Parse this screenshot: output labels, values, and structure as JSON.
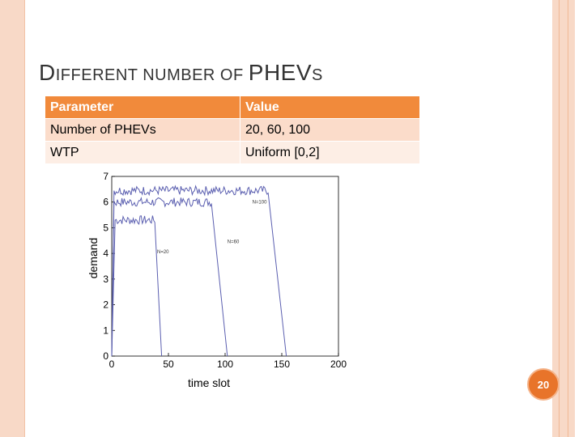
{
  "slide": {
    "title_first": "D",
    "title_rest": "IFFERENT NUMBER OF ",
    "title_big": "PHEV",
    "title_end": "S",
    "slide_number": "20"
  },
  "table": {
    "header": [
      "Parameter",
      "Value"
    ],
    "rows": [
      [
        "Number of PHEVs",
        "20, 60, 100"
      ],
      [
        "WTP",
        "Uniform [0,2]"
      ]
    ]
  },
  "chart_data": {
    "type": "line",
    "xlabel": "time slot",
    "ylabel": "demand",
    "xlim": [
      0,
      200
    ],
    "ylim": [
      0,
      7
    ],
    "x_ticks": [
      0,
      50,
      100,
      150,
      200
    ],
    "y_ticks": [
      0,
      1,
      2,
      3,
      4,
      5,
      6,
      7
    ],
    "series": [
      {
        "name": "N=20",
        "color": "#5b5fb0",
        "plateau": 5.3,
        "rise_end": 3,
        "drop_start": 38,
        "drop_end": 44
      },
      {
        "name": "N=60",
        "color": "#5b5fb0",
        "plateau": 6.0,
        "rise_end": 2,
        "drop_start": 88,
        "drop_end": 102
      },
      {
        "name": "N=100",
        "color": "#5b5fb0",
        "plateau": 6.45,
        "rise_end": 2,
        "drop_start": 138,
        "drop_end": 154
      }
    ],
    "annotations": [
      {
        "text": "N=20",
        "x": 40,
        "y": 4.0
      },
      {
        "text": "N=60",
        "x": 102,
        "y": 4.4
      },
      {
        "text": "N=100",
        "x": 124,
        "y": 5.95
      }
    ]
  }
}
